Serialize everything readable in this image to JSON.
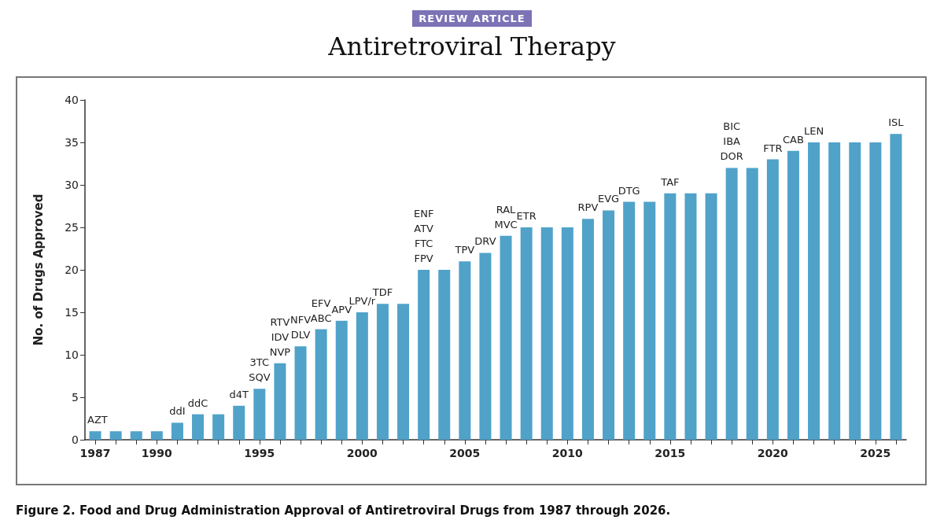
{
  "chart_data": {
    "type": "bar",
    "subtitle": "REVIEW ARTICLE",
    "title": "Antiretroviral Therapy",
    "ylabel": "No. of Drugs Approved",
    "x": [
      1987,
      1988,
      1989,
      1990,
      1991,
      1992,
      1993,
      1994,
      1995,
      1996,
      1997,
      1998,
      1999,
      2000,
      2001,
      2002,
      2003,
      2004,
      2005,
      2006,
      2007,
      2008,
      2009,
      2010,
      2011,
      2012,
      2013,
      2014,
      2015,
      2016,
      2017,
      2018,
      2019,
      2020,
      2021,
      2022,
      2023,
      2024,
      2025,
      2026
    ],
    "values": [
      1,
      1,
      1,
      1,
      2,
      3,
      3,
      4,
      6,
      9,
      11,
      13,
      14,
      15,
      16,
      16,
      20,
      20,
      21,
      22,
      24,
      25,
      25,
      25,
      26,
      27,
      28,
      28,
      29,
      29,
      29,
      32,
      32,
      33,
      34,
      35,
      35,
      35,
      35,
      36
    ],
    "color": "#50a2c9",
    "xlim": [
      1986.5,
      2026.5
    ],
    "xticks": [
      1987,
      {
        "value": 1988,
        "label": null
      },
      {
        "value": 1989,
        "label": null
      },
      1990,
      {
        "value": 1991,
        "label": null
      },
      {
        "value": 1992,
        "label": null
      },
      {
        "value": 1993,
        "label": null
      },
      {
        "value": 1994,
        "label": null
      },
      1995,
      {
        "value": 1996,
        "label": null
      },
      {
        "value": 1997,
        "label": null
      },
      {
        "value": 1998,
        "label": null
      },
      {
        "value": 1999,
        "label": null
      },
      2000,
      {
        "value": 2001,
        "label": null
      },
      {
        "value": 2002,
        "label": null
      },
      {
        "value": 2003,
        "label": null
      },
      {
        "value": 2004,
        "label": null
      },
      2005,
      {
        "value": 2006,
        "label": null
      },
      {
        "value": 2007,
        "label": null
      },
      {
        "value": 2008,
        "label": null
      },
      {
        "value": 2009,
        "label": null
      },
      2010,
      {
        "value": 2011,
        "label": null
      },
      {
        "value": 2012,
        "label": null
      },
      {
        "value": 2013,
        "label": null
      },
      {
        "value": 2014,
        "label": null
      },
      2015,
      {
        "value": 2016,
        "label": null
      },
      {
        "value": 2017,
        "label": null
      },
      {
        "value": 2018,
        "label": null
      },
      {
        "value": 2019,
        "label": null
      },
      2020,
      {
        "value": 2021,
        "label": null
      },
      {
        "value": 2022,
        "label": null
      },
      {
        "value": 2023,
        "label": null
      },
      {
        "value": 2024,
        "label": null
      },
      2025,
      {
        "value": 2026,
        "label": null
      }
    ],
    "ylim": [
      0,
      40
    ],
    "yticks": [
      0,
      5,
      10,
      15,
      20,
      25,
      30,
      35,
      40
    ],
    "grid": false,
    "annotations": [
      {
        "text": "AZT",
        "x": 1987,
        "y": 1
      },
      {
        "text": "ddI",
        "x": 1991,
        "y": 2
      },
      {
        "text": "ddC",
        "x": 1992,
        "y": 3
      },
      {
        "text": "d4T",
        "x": 1994,
        "y": 4
      },
      {
        "text": "3TC\nSQV",
        "x": 1995,
        "y": 6
      },
      {
        "text": "RTV\nIDV\nNVP",
        "x": 1996,
        "y": 9
      },
      {
        "text": "NFV\nDLV",
        "x": 1997,
        "y": 11
      },
      {
        "text": "EFV\nABC",
        "x": 1998,
        "y": 13
      },
      {
        "text": "APV",
        "x": 1999,
        "y": 14
      },
      {
        "text": "LPV/r",
        "x": 2000,
        "y": 15
      },
      {
        "text": "TDF",
        "x": 2001,
        "y": 16
      },
      {
        "text": "ENF\nATV\nFTC\nFPV",
        "x": 2003,
        "y": 20
      },
      {
        "text": "TPV",
        "x": 2005,
        "y": 21
      },
      {
        "text": "DRV",
        "x": 2006,
        "y": 22
      },
      {
        "text": "RAL\nMVC",
        "x": 2007,
        "y": 24
      },
      {
        "text": "ETR",
        "x": 2008,
        "y": 25
      },
      {
        "text": "RPV",
        "x": 2011,
        "y": 26
      },
      {
        "text": "EVG",
        "x": 2012,
        "y": 27
      },
      {
        "text": "DTG",
        "x": 2013,
        "y": 28
      },
      {
        "text": "TAF",
        "x": 2015,
        "y": 29
      },
      {
        "text": "BIC\nIBA\nDOR",
        "x": 2018,
        "y": 32
      },
      {
        "text": "FTR",
        "x": 2020,
        "y": 33
      },
      {
        "text": "CAB",
        "x": 2021,
        "y": 34
      },
      {
        "text": "LEN",
        "x": 2022,
        "y": 35
      },
      {
        "text": "ISL",
        "x": 2026,
        "y": 36
      },
      "Figure 2. Food and Drug Administration Approval of Antiretroviral Drugs from 1987 through 2026."
    ]
  }
}
